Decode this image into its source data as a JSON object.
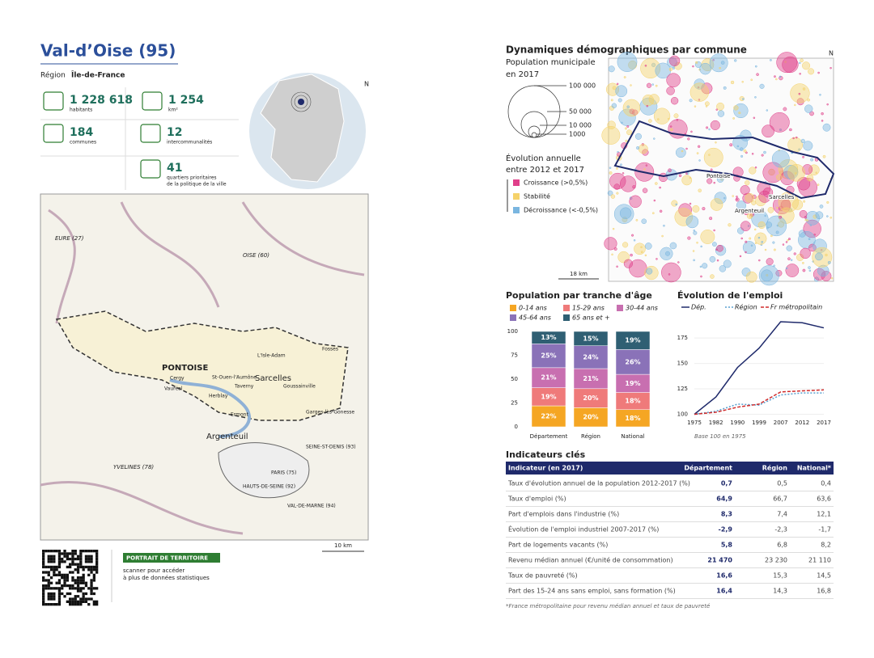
{
  "header": {
    "title": "Val-d’Oise (95)",
    "region_label": "Région",
    "region": "Île-de-France"
  },
  "stats": [
    {
      "value": "1 228 618",
      "label": [
        "habitants"
      ]
    },
    {
      "value": "1 254",
      "label": [
        "km²"
      ]
    },
    {
      "value": "184",
      "label": [
        "communes"
      ]
    },
    {
      "value": "12",
      "label": [
        "intercommunalités"
      ]
    },
    {
      "value": "41",
      "label": [
        "quartiers prioritaires",
        "de la politique de la ville"
      ]
    }
  ],
  "north": "N",
  "map": {
    "labels": [
      "EURE (27)",
      "OISE (60)",
      "PONTOISE",
      "Sarcelles",
      "Argenteuil",
      "YVELINES (78)",
      "PARIS (75)",
      "HAUTS-DE-SEINE (92)",
      "VAL-DE-MARNE (94)",
      "SEINE-ST-DENIS (93)",
      "Cergy",
      "Vauréal",
      "St-Ouen-l'Aumône",
      "Taverny",
      "Herblay",
      "Ermont",
      "Goussainville",
      "Garges-lès-Gonesse",
      "L'Isle-Adam",
      "Fosses"
    ],
    "scale": "10 km"
  },
  "qr": {
    "badge": "PORTRAIT DE TERRITOIRE",
    "text": [
      "scanner pour accéder",
      "à plus de données statistiques"
    ]
  },
  "dynamics": {
    "title": "Dynamiques démographiques par commune",
    "pop_title": "Population municipale",
    "pop_subtitle": "en 2017",
    "pop_legend": [
      "100 000",
      "50 000",
      "10 000",
      "1000"
    ],
    "evo_title": "Évolution annuelle",
    "evo_subtitle": "entre 2012 et 2017",
    "evo_legend": [
      {
        "label": "Croissance (>0,5%)",
        "color": "#e0408a"
      },
      {
        "label": "Stabilité",
        "color": "#f5d26a"
      },
      {
        "label": "Décroissance (<-0,5%)",
        "color": "#7ab6e0"
      }
    ],
    "map_labels": [
      "Pontoise",
      "Sarcelles",
      "Argenteuil"
    ],
    "scale": "18 km"
  },
  "age_chart": {
    "type": "bar",
    "title": "Population par tranche d'âge",
    "categories": [
      "Département",
      "Région",
      "National"
    ],
    "series": [
      {
        "name": "0-14 ans",
        "color": "#f5a623",
        "values": [
          22,
          20,
          18
        ],
        "value_labels": [
          "22%",
          "20%",
          "18%"
        ]
      },
      {
        "name": "15-29 ans",
        "color": "#ef7a7a",
        "values": [
          19,
          20,
          18
        ],
        "value_labels": [
          "19%",
          "20%",
          "18%"
        ]
      },
      {
        "name": "30-44 ans",
        "color": "#c86fb0",
        "values": [
          21,
          21,
          19
        ],
        "value_labels": [
          "21%",
          "21%",
          "19%"
        ]
      },
      {
        "name": "45-64 ans",
        "color": "#8a72b8",
        "values": [
          25,
          24,
          26
        ],
        "value_labels": [
          "25%",
          "24%",
          "26%"
        ]
      },
      {
        "name": "65 ans et +",
        "color": "#2f5f73",
        "values": [
          13,
          15,
          19
        ],
        "value_labels": [
          "13%",
          "15%",
          "19%"
        ]
      }
    ],
    "ylim": [
      0,
      100
    ],
    "yticks": [
      0,
      25,
      50,
      75,
      100
    ]
  },
  "emp_chart": {
    "type": "line",
    "title": "Évolution de l'emploi",
    "categories": [
      "1975",
      "1982",
      "1990",
      "1999",
      "2007",
      "2012",
      "2017"
    ],
    "series": [
      {
        "name": "Dép.",
        "color": "#1f2a6b",
        "dash": "none",
        "values": [
          100,
          117,
          146,
          165,
          191,
          190,
          185
        ]
      },
      {
        "name": "Région",
        "color": "#5aa0d0",
        "dash": "2 2",
        "values": [
          100,
          103,
          110,
          109,
          119,
          121,
          121
        ]
      },
      {
        "name": "Fr métropolitain",
        "color": "#d02b2b",
        "dash": "4 2",
        "values": [
          100,
          102,
          107,
          110,
          122,
          123,
          124
        ]
      }
    ],
    "ylim": [
      98,
      195
    ],
    "yticks": [
      100,
      125,
      150,
      175
    ],
    "note": "Base 100 en 1975"
  },
  "indicators": {
    "title": "Indicateurs clés",
    "header": [
      "Indicateur (en 2017)",
      "Département",
      "Région",
      "National*"
    ],
    "rows": [
      [
        "Taux d'évolution annuel de la population 2012-2017 (%)",
        "0,7",
        "0,5",
        "0,4"
      ],
      [
        "Taux d'emploi (%)",
        "64,9",
        "66,7",
        "63,6"
      ],
      [
        "Part d'emplois dans l'industrie (%)",
        "8,3",
        "7,4",
        "12,1"
      ],
      [
        "Évolution de l'emploi industriel 2007-2017 (%)",
        "-2,9",
        "-2,3",
        "-1,7"
      ],
      [
        "Part de logements vacants (%)",
        "5,8",
        "6,8",
        "8,2"
      ],
      [
        "Revenu médian annuel (€/unité de consommation)",
        "21 470",
        "23 230",
        "21 110"
      ],
      [
        "Taux de pauvreté (%)",
        "16,6",
        "15,3",
        "14,5"
      ],
      [
        "Part des 15-24 ans sans emploi, sans formation (%)",
        "16,4",
        "14,3",
        "16,8"
      ]
    ],
    "footnote": "*France métropolitaine pour revenu médian annuel et taux de pauvreté"
  }
}
